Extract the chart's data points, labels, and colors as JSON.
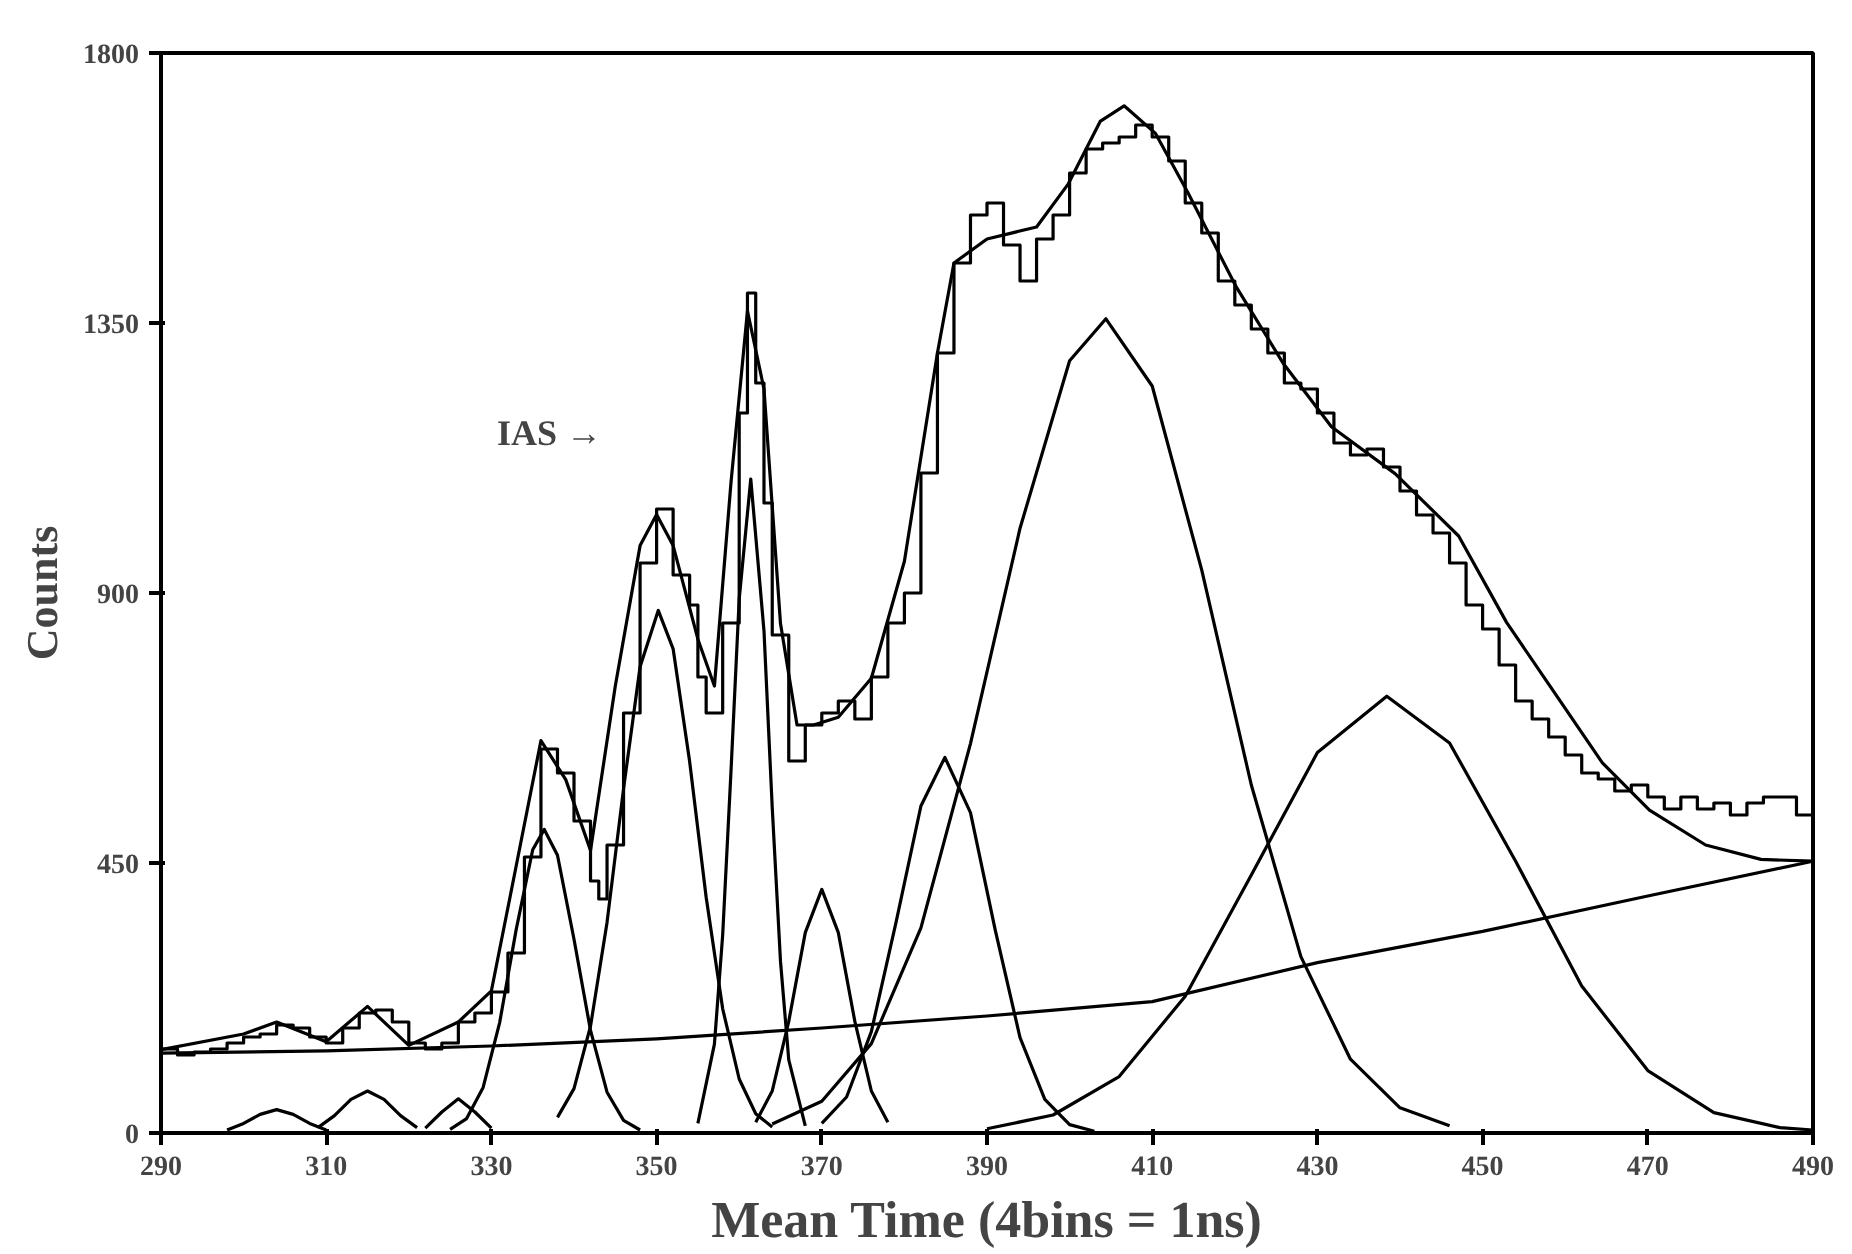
{
  "chart_data": {
    "type": "line",
    "xlabel": "Mean Time (4bins = 1ns)",
    "ylabel": "Counts",
    "xlim": [
      290,
      490
    ],
    "xticks": [
      290,
      310,
      330,
      350,
      370,
      390,
      410,
      430,
      450,
      470,
      490
    ],
    "ylim": [
      0,
      1800
    ],
    "yticks": [
      0,
      450,
      900,
      1350,
      1800
    ],
    "grid": false,
    "annotations": [
      "IAS →"
    ],
    "series": [
      {
        "type": "step",
        "color": "#000000",
        "x": [
          290,
          292,
          294,
          296,
          298,
          300,
          302,
          304,
          306,
          308,
          310,
          312,
          314,
          316,
          318,
          320,
          322,
          324,
          326,
          328,
          330,
          332,
          334,
          336,
          338,
          340,
          342,
          343,
          344,
          346,
          348,
          350,
          352,
          354,
          355,
          356,
          358,
          360,
          361,
          362,
          363,
          364,
          366,
          368,
          370,
          372,
          374,
          376,
          378,
          380,
          382,
          384,
          386,
          388,
          390,
          392,
          394,
          396,
          398,
          400,
          402,
          404,
          406,
          408,
          410,
          412,
          414,
          416,
          418,
          420,
          422,
          424,
          426,
          428,
          430,
          432,
          434,
          436,
          438,
          440,
          442,
          444,
          446,
          448,
          450,
          452,
          454,
          456,
          458,
          460,
          462,
          464,
          466,
          468,
          470,
          472,
          474,
          476,
          478,
          480,
          482,
          484,
          486,
          488,
          490
        ],
        "values": [
          140,
          130,
          135,
          140,
          150,
          160,
          165,
          180,
          175,
          160,
          150,
          175,
          200,
          205,
          185,
          150,
          140,
          150,
          185,
          200,
          235,
          300,
          460,
          640,
          600,
          520,
          420,
          390,
          480,
          700,
          950,
          1040,
          930,
          880,
          760,
          700,
          850,
          1200,
          1400,
          1250,
          1050,
          830,
          620,
          680,
          700,
          720,
          690,
          760,
          850,
          900,
          1100,
          1300,
          1450,
          1530,
          1550,
          1480,
          1420,
          1490,
          1530,
          1600,
          1640,
          1650,
          1660,
          1680,
          1660,
          1620,
          1550,
          1500,
          1420,
          1380,
          1340,
          1300,
          1250,
          1240,
          1200,
          1150,
          1130,
          1140,
          1110,
          1070,
          1030,
          1000,
          950,
          880,
          840,
          780,
          720,
          690,
          660,
          630,
          600,
          590,
          570,
          580,
          560,
          540,
          560,
          540,
          550,
          530,
          550,
          560,
          560,
          530,
          570
        ]
      },
      {
        "color": "#000000",
        "x": [
          290,
          300,
          304,
          310,
          315,
          320,
          326,
          330,
          333,
          336,
          339,
          342,
          345,
          348,
          350,
          352,
          355,
          357,
          359,
          361,
          363,
          365,
          367,
          369,
          372,
          376,
          380,
          384,
          386,
          390,
          396,
          399.8,
          403.7,
          406.6,
          410.4,
          414.3,
          420.1,
          425.9,
          431.7,
          439.4,
          447.1,
          452.9,
          458.7,
          464.5,
          470.2,
          477,
          483.7,
          490
        ],
        "values": [
          139,
          165,
          185,
          152,
          211,
          146,
          185,
          237,
          445,
          654,
          589,
          471,
          745,
          979,
          1031,
          979,
          823,
          745,
          1083,
          1370,
          1240,
          849,
          680,
          680,
          693,
          758,
          953,
          1300,
          1450,
          1490,
          1510,
          1581,
          1686,
          1712,
          1666,
          1568,
          1412,
          1282,
          1177,
          1099,
          995,
          851,
          734,
          617,
          538,
          480,
          456,
          453
        ]
      },
      {
        "color": "#000000",
        "x": [
          290,
          310,
          330,
          350,
          370,
          390,
          410,
          430,
          450,
          470,
          490
        ],
        "values": [
          133,
          137,
          145,
          157,
          175,
          195,
          219,
          284,
          336,
          395,
          453
        ]
      },
      {
        "color": "#000000",
        "x": [
          298,
          300,
          302,
          304,
          306,
          308,
          310
        ],
        "values": [
          5,
          16,
          31,
          39,
          31,
          16,
          5
        ]
      },
      {
        "color": "#000000",
        "x": [
          309,
          311,
          313,
          315,
          317,
          319,
          321
        ],
        "values": [
          9,
          29,
          56,
          70,
          56,
          29,
          9
        ]
      },
      {
        "color": "#000000",
        "x": [
          322,
          324,
          326,
          328,
          330
        ],
        "values": [
          8,
          35,
          57,
          35,
          8
        ]
      },
      {
        "color": "#000000",
        "x": [
          325,
          327,
          329,
          331,
          333,
          335,
          336.4,
          338,
          340,
          342,
          344,
          346,
          348
        ],
        "values": [
          6,
          24,
          76,
          184,
          339,
          472,
          506,
          463,
          323,
          171,
          68,
          21,
          5
        ]
      },
      {
        "color": "#000000",
        "x": [
          338,
          340,
          342,
          344,
          346,
          348,
          350.2,
          352,
          354,
          356,
          358,
          360,
          362,
          364
        ],
        "values": [
          26,
          74,
          178,
          351,
          574,
          777,
          871,
          807,
          619,
          393,
          207,
          90,
          32,
          10
        ]
      },
      {
        "color": "#000000",
        "x": [
          355,
          357,
          358,
          359,
          360,
          361.4,
          363,
          364,
          365,
          366,
          368
        ],
        "values": [
          16,
          148,
          330,
          601,
          890,
          1090,
          837,
          542,
          286,
          122,
          12
        ]
      },
      {
        "color": "#000000",
        "x": [
          362,
          364,
          366,
          368,
          370,
          372,
          374,
          376,
          378
        ],
        "values": [
          18,
          70,
          186,
          334,
          406,
          334,
          186,
          70,
          18
        ]
      },
      {
        "color": "#000000",
        "x": [
          370,
          373,
          376,
          379,
          382,
          384.9,
          388,
          391,
          394,
          397,
          400,
          403
        ],
        "values": [
          16,
          60,
          169,
          352,
          545,
          626,
          534,
          338,
          159,
          56,
          14,
          3
        ]
      },
      {
        "color": "#000000",
        "x": [
          364,
          370,
          376,
          382,
          388,
          394,
          400,
          404.4,
          410,
          416,
          422,
          428,
          434,
          440,
          446
        ],
        "values": [
          15,
          53,
          149,
          342,
          649,
          1008,
          1287,
          1357,
          1245,
          938,
          580,
          294,
          123,
          42,
          12
        ]
      },
      {
        "color": "#000000",
        "x": [
          390,
          398,
          406,
          414,
          422,
          430,
          438.4,
          446,
          454,
          462,
          470,
          478,
          486,
          490
        ],
        "values": [
          7,
          30,
          94,
          228,
          430,
          634,
          728,
          650,
          453,
          245,
          104,
          34,
          9,
          5
        ]
      }
    ]
  }
}
